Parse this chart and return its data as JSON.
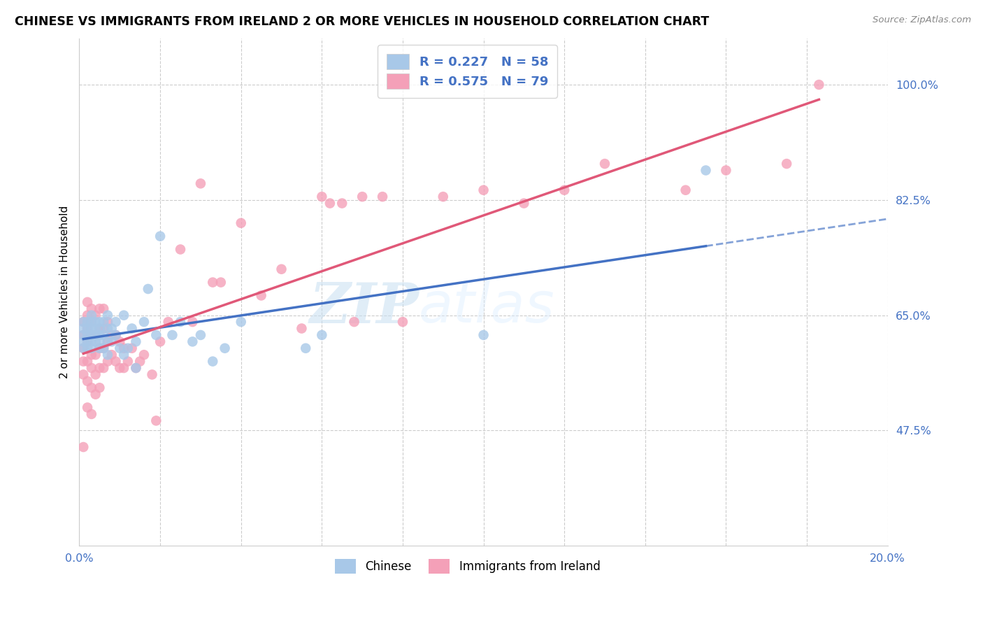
{
  "title": "CHINESE VS IMMIGRANTS FROM IRELAND 2 OR MORE VEHICLES IN HOUSEHOLD CORRELATION CHART",
  "source": "Source: ZipAtlas.com",
  "ylabel": "2 or more Vehicles in Household",
  "xlim": [
    0.0,
    0.2
  ],
  "ylim": [
    0.3,
    1.07
  ],
  "ytick_labels": [
    "47.5%",
    "65.0%",
    "82.5%",
    "100.0%"
  ],
  "ytick_vals": [
    0.475,
    0.65,
    0.825,
    1.0
  ],
  "xtick_vals": [
    0.0,
    0.02,
    0.04,
    0.06,
    0.08,
    0.1,
    0.12,
    0.14,
    0.16,
    0.18,
    0.2
  ],
  "xtick_labels": [
    "0.0%",
    "",
    "",
    "",
    "",
    "",
    "",
    "",
    "",
    "",
    "20.0%"
  ],
  "legend_labels": [
    "Chinese",
    "Immigrants from Ireland"
  ],
  "R_chinese": 0.227,
  "N_chinese": 58,
  "R_ireland": 0.575,
  "N_ireland": 79,
  "chinese_color": "#a8c8e8",
  "ireland_color": "#f4a0b8",
  "chinese_line_color": "#4472c4",
  "ireland_line_color": "#e05878",
  "watermark_zip": "ZIP",
  "watermark_atlas": "atlas",
  "chinese_x": [
    0.001,
    0.001,
    0.001,
    0.001,
    0.001,
    0.002,
    0.002,
    0.002,
    0.002,
    0.002,
    0.003,
    0.003,
    0.003,
    0.003,
    0.003,
    0.003,
    0.004,
    0.004,
    0.004,
    0.004,
    0.005,
    0.005,
    0.005,
    0.005,
    0.005,
    0.006,
    0.006,
    0.006,
    0.007,
    0.007,
    0.007,
    0.007,
    0.008,
    0.008,
    0.009,
    0.009,
    0.01,
    0.011,
    0.011,
    0.012,
    0.013,
    0.014,
    0.014,
    0.016,
    0.017,
    0.019,
    0.02,
    0.023,
    0.025,
    0.028,
    0.03,
    0.033,
    0.036,
    0.04,
    0.056,
    0.06,
    0.1,
    0.155
  ],
  "chinese_y": [
    0.62,
    0.63,
    0.64,
    0.6,
    0.61,
    0.61,
    0.62,
    0.63,
    0.64,
    0.6,
    0.61,
    0.62,
    0.63,
    0.64,
    0.65,
    0.6,
    0.61,
    0.62,
    0.63,
    0.64,
    0.6,
    0.61,
    0.62,
    0.63,
    0.64,
    0.6,
    0.62,
    0.64,
    0.59,
    0.61,
    0.63,
    0.65,
    0.61,
    0.63,
    0.62,
    0.64,
    0.6,
    0.59,
    0.65,
    0.6,
    0.63,
    0.57,
    0.61,
    0.64,
    0.69,
    0.62,
    0.77,
    0.62,
    0.64,
    0.61,
    0.62,
    0.58,
    0.6,
    0.64,
    0.6,
    0.62,
    0.62,
    0.87
  ],
  "ireland_x": [
    0.001,
    0.001,
    0.001,
    0.001,
    0.001,
    0.001,
    0.002,
    0.002,
    0.002,
    0.002,
    0.002,
    0.002,
    0.002,
    0.003,
    0.003,
    0.003,
    0.003,
    0.003,
    0.003,
    0.003,
    0.004,
    0.004,
    0.004,
    0.004,
    0.004,
    0.005,
    0.005,
    0.005,
    0.005,
    0.005,
    0.006,
    0.006,
    0.006,
    0.006,
    0.007,
    0.007,
    0.007,
    0.008,
    0.008,
    0.009,
    0.009,
    0.01,
    0.01,
    0.011,
    0.011,
    0.012,
    0.013,
    0.014,
    0.015,
    0.016,
    0.018,
    0.019,
    0.02,
    0.022,
    0.025,
    0.028,
    0.03,
    0.033,
    0.035,
    0.04,
    0.045,
    0.05,
    0.055,
    0.06,
    0.062,
    0.065,
    0.068,
    0.07,
    0.075,
    0.08,
    0.09,
    0.1,
    0.11,
    0.12,
    0.13,
    0.15,
    0.16,
    0.175,
    0.183
  ],
  "ireland_y": [
    0.56,
    0.58,
    0.6,
    0.62,
    0.64,
    0.45,
    0.51,
    0.55,
    0.58,
    0.61,
    0.63,
    0.65,
    0.67,
    0.5,
    0.54,
    0.57,
    0.59,
    0.62,
    0.64,
    0.66,
    0.53,
    0.56,
    0.59,
    0.62,
    0.65,
    0.54,
    0.57,
    0.6,
    0.63,
    0.66,
    0.57,
    0.6,
    0.63,
    0.66,
    0.58,
    0.61,
    0.64,
    0.59,
    0.62,
    0.58,
    0.62,
    0.57,
    0.61,
    0.57,
    0.6,
    0.58,
    0.6,
    0.57,
    0.58,
    0.59,
    0.56,
    0.49,
    0.61,
    0.64,
    0.75,
    0.64,
    0.85,
    0.7,
    0.7,
    0.79,
    0.68,
    0.72,
    0.63,
    0.83,
    0.82,
    0.82,
    0.64,
    0.83,
    0.83,
    0.64,
    0.83,
    0.84,
    0.82,
    0.84,
    0.88,
    0.84,
    0.87,
    0.88,
    1.0
  ],
  "ireland_line_x_start": 0.001,
  "ireland_line_x_end": 0.183,
  "chinese_line_x_start": 0.001,
  "chinese_line_x_solid_end": 0.155,
  "chinese_line_x_dash_end": 0.2
}
